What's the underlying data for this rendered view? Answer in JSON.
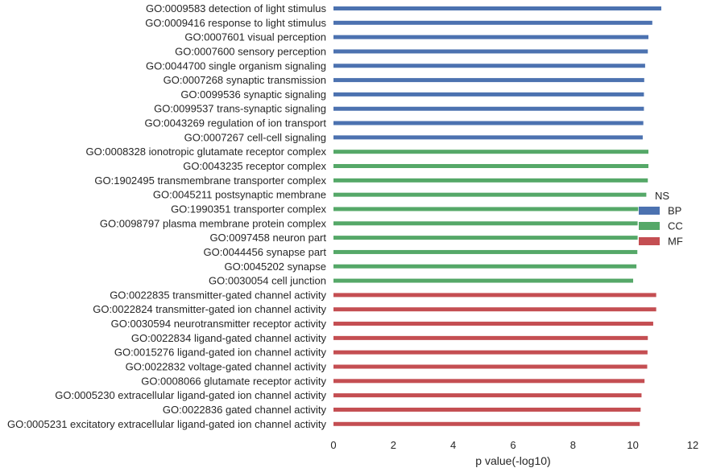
{
  "chart_data": {
    "type": "bar",
    "orientation": "horizontal",
    "xlabel": "p value(-log10)",
    "xlim": [
      0,
      12
    ],
    "xticks": [
      0,
      2,
      4,
      6,
      8,
      10,
      12
    ],
    "grid": false,
    "legend": {
      "title": "NS",
      "placement": "right",
      "entries": [
        {
          "name": "BP",
          "color": "#4c72b0"
        },
        {
          "name": "CC",
          "color": "#55a868"
        },
        {
          "name": "MF",
          "color": "#c44e52"
        }
      ]
    },
    "categories": [
      "GO:0009583 detection of light stimulus",
      "GO:0009416 response to light stimulus",
      "GO:0007601 visual perception",
      "GO:0007600 sensory perception",
      "GO:0044700 single organism signaling",
      "GO:0007268 synaptic transmission",
      "GO:0099536 synaptic signaling",
      "GO:0099537 trans-synaptic signaling",
      "GO:0043269 regulation of ion transport",
      "GO:0007267 cell-cell signaling",
      "GO:0008328 ionotropic glutamate receptor complex",
      "GO:0043235 receptor complex",
      "GO:1902495 transmembrane transporter complex",
      "GO:0045211 postsynaptic membrane",
      "GO:1990351 transporter complex",
      "GO:0098797 plasma membrane protein complex",
      "GO:0097458 neuron part",
      "GO:0044456 synapse part",
      "GO:0045202 synapse",
      "GO:0030054 cell junction",
      "GO:0022835 transmitter-gated channel activity",
      "GO:0022824 transmitter-gated ion channel activity",
      "GO:0030594 neurotransmitter receptor activity",
      "GO:0022834 ligand-gated channel activity",
      "GO:0015276 ligand-gated ion channel activity",
      "GO:0022832 voltage-gated channel activity",
      "GO:0008066 glutamate receptor activity",
      "GO:0005230 extracellular ligand-gated ion channel activity",
      "GO:0022836 gated channel activity",
      "GO:0005231 excitatory extracellular ligand-gated ion channel activity"
    ],
    "values": [
      10.95,
      10.65,
      10.52,
      10.5,
      10.41,
      10.38,
      10.37,
      10.37,
      10.35,
      10.33,
      10.52,
      10.52,
      10.5,
      10.45,
      10.18,
      10.16,
      10.16,
      10.15,
      10.12,
      10.01,
      10.78,
      10.78,
      10.68,
      10.5,
      10.49,
      10.48,
      10.39,
      10.29,
      10.26,
      10.23
    ],
    "groups": [
      "BP",
      "BP",
      "BP",
      "BP",
      "BP",
      "BP",
      "BP",
      "BP",
      "BP",
      "BP",
      "CC",
      "CC",
      "CC",
      "CC",
      "CC",
      "CC",
      "CC",
      "CC",
      "CC",
      "CC",
      "MF",
      "MF",
      "MF",
      "MF",
      "MF",
      "MF",
      "MF",
      "MF",
      "MF",
      "MF"
    ]
  }
}
